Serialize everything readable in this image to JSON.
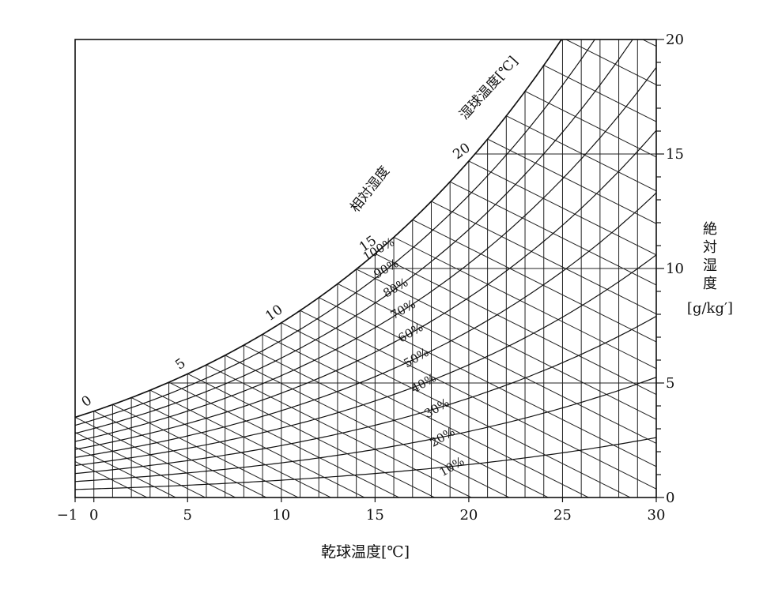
{
  "chart_data": {
    "type": "line",
    "title": "",
    "xlabel": "乾球温度[℃]",
    "ylabel": "絶対湿度 [g/kg′]",
    "ylabel_lines": [
      "絶",
      "対",
      "湿",
      "度",
      "[g/kg′]"
    ],
    "xlim": [
      -1,
      30
    ],
    "ylim": [
      0,
      20
    ],
    "x_ticks": [
      -1,
      0,
      5,
      10,
      15,
      20,
      25,
      30
    ],
    "x_tick_labels": [
      "−1",
      "0",
      "5",
      "10",
      "15",
      "20",
      "25",
      "30"
    ],
    "y_ticks": [
      0,
      5,
      10,
      15,
      20
    ],
    "y_tick_labels": [
      "0",
      "5",
      "10",
      "15",
      "20"
    ],
    "grid": true,
    "rh_title": "相対湿度",
    "rh_labels": [
      "100%",
      "90%",
      "80%",
      "70%",
      "60%",
      "50%",
      "40%",
      "30%",
      "20%",
      "10%"
    ],
    "wb_title": "湿球温度[℃]",
    "wb_labels": [
      "0",
      "5",
      "10",
      "15",
      "20"
    ],
    "series": [
      {
        "name": "100%",
        "rh": 1.0,
        "points": [
          [
            -1,
            3.4
          ],
          [
            0,
            3.8
          ],
          [
            5,
            5.4
          ],
          [
            10,
            7.6
          ],
          [
            15,
            10.6
          ],
          [
            20,
            14.7
          ],
          [
            24.3,
            19.3
          ]
        ]
      },
      {
        "name": "90%",
        "rh": 0.9,
        "points": [
          [
            -1,
            3.1
          ],
          [
            0,
            3.4
          ],
          [
            5,
            4.9
          ],
          [
            10,
            6.8
          ],
          [
            15,
            9.5
          ],
          [
            20,
            13.2
          ],
          [
            25,
            18.0
          ],
          [
            26,
            19.2
          ]
        ]
      },
      {
        "name": "80%",
        "rh": 0.8,
        "points": [
          [
            -1,
            2.7
          ],
          [
            0,
            3.0
          ],
          [
            5,
            4.3
          ],
          [
            10,
            6.1
          ],
          [
            15,
            8.5
          ],
          [
            20,
            11.7
          ],
          [
            25,
            16.0
          ],
          [
            28,
            19.2
          ]
        ]
      },
      {
        "name": "70%",
        "rh": 0.7,
        "points": [
          [
            -1,
            2.4
          ],
          [
            0,
            2.6
          ],
          [
            5,
            3.8
          ],
          [
            10,
            5.3
          ],
          [
            15,
            7.4
          ],
          [
            20,
            10.3
          ],
          [
            25,
            14.0
          ],
          [
            29.7,
            18.8
          ]
        ]
      },
      {
        "name": "60%",
        "rh": 0.6,
        "points": [
          [
            -1,
            2.0
          ],
          [
            0,
            2.3
          ],
          [
            5,
            3.2
          ],
          [
            10,
            4.6
          ],
          [
            15,
            6.4
          ],
          [
            20,
            8.8
          ],
          [
            25,
            12.0
          ],
          [
            30,
            16.1
          ]
        ]
      },
      {
        "name": "50%",
        "rh": 0.5,
        "points": [
          [
            -1,
            1.7
          ],
          [
            0,
            1.9
          ],
          [
            5,
            2.7
          ],
          [
            10,
            3.8
          ],
          [
            15,
            5.3
          ],
          [
            20,
            7.3
          ],
          [
            25,
            10.0
          ],
          [
            30,
            13.4
          ]
        ]
      },
      {
        "name": "40%",
        "rh": 0.4,
        "points": [
          [
            -1,
            1.4
          ],
          [
            0,
            1.5
          ],
          [
            5,
            2.2
          ],
          [
            10,
            3.0
          ],
          [
            15,
            4.2
          ],
          [
            20,
            5.9
          ],
          [
            25,
            8.0
          ],
          [
            30,
            10.7
          ]
        ]
      },
      {
        "name": "30%",
        "rh": 0.3,
        "points": [
          [
            -1,
            1.0
          ],
          [
            0,
            1.1
          ],
          [
            5,
            1.6
          ],
          [
            10,
            2.3
          ],
          [
            15,
            3.2
          ],
          [
            20,
            4.4
          ],
          [
            25,
            6.0
          ],
          [
            30,
            8.0
          ]
        ]
      },
      {
        "name": "20%",
        "rh": 0.2,
        "points": [
          [
            -1,
            0.7
          ],
          [
            0,
            0.8
          ],
          [
            5,
            1.1
          ],
          [
            10,
            1.5
          ],
          [
            15,
            2.1
          ],
          [
            20,
            2.9
          ],
          [
            25,
            4.0
          ],
          [
            30,
            5.4
          ]
        ]
      },
      {
        "name": "10%",
        "rh": 0.1,
        "points": [
          [
            -1,
            0.3
          ],
          [
            0,
            0.4
          ],
          [
            5,
            0.5
          ],
          [
            10,
            0.8
          ],
          [
            15,
            1.1
          ],
          [
            20,
            1.5
          ],
          [
            25,
            2.0
          ],
          [
            30,
            2.7
          ]
        ]
      }
    ],
    "wet_bulb_lines_step_c": 1,
    "dry_bulb_lines_step_c": 1,
    "abs_humidity_grid": [
      5,
      10,
      15
    ]
  }
}
